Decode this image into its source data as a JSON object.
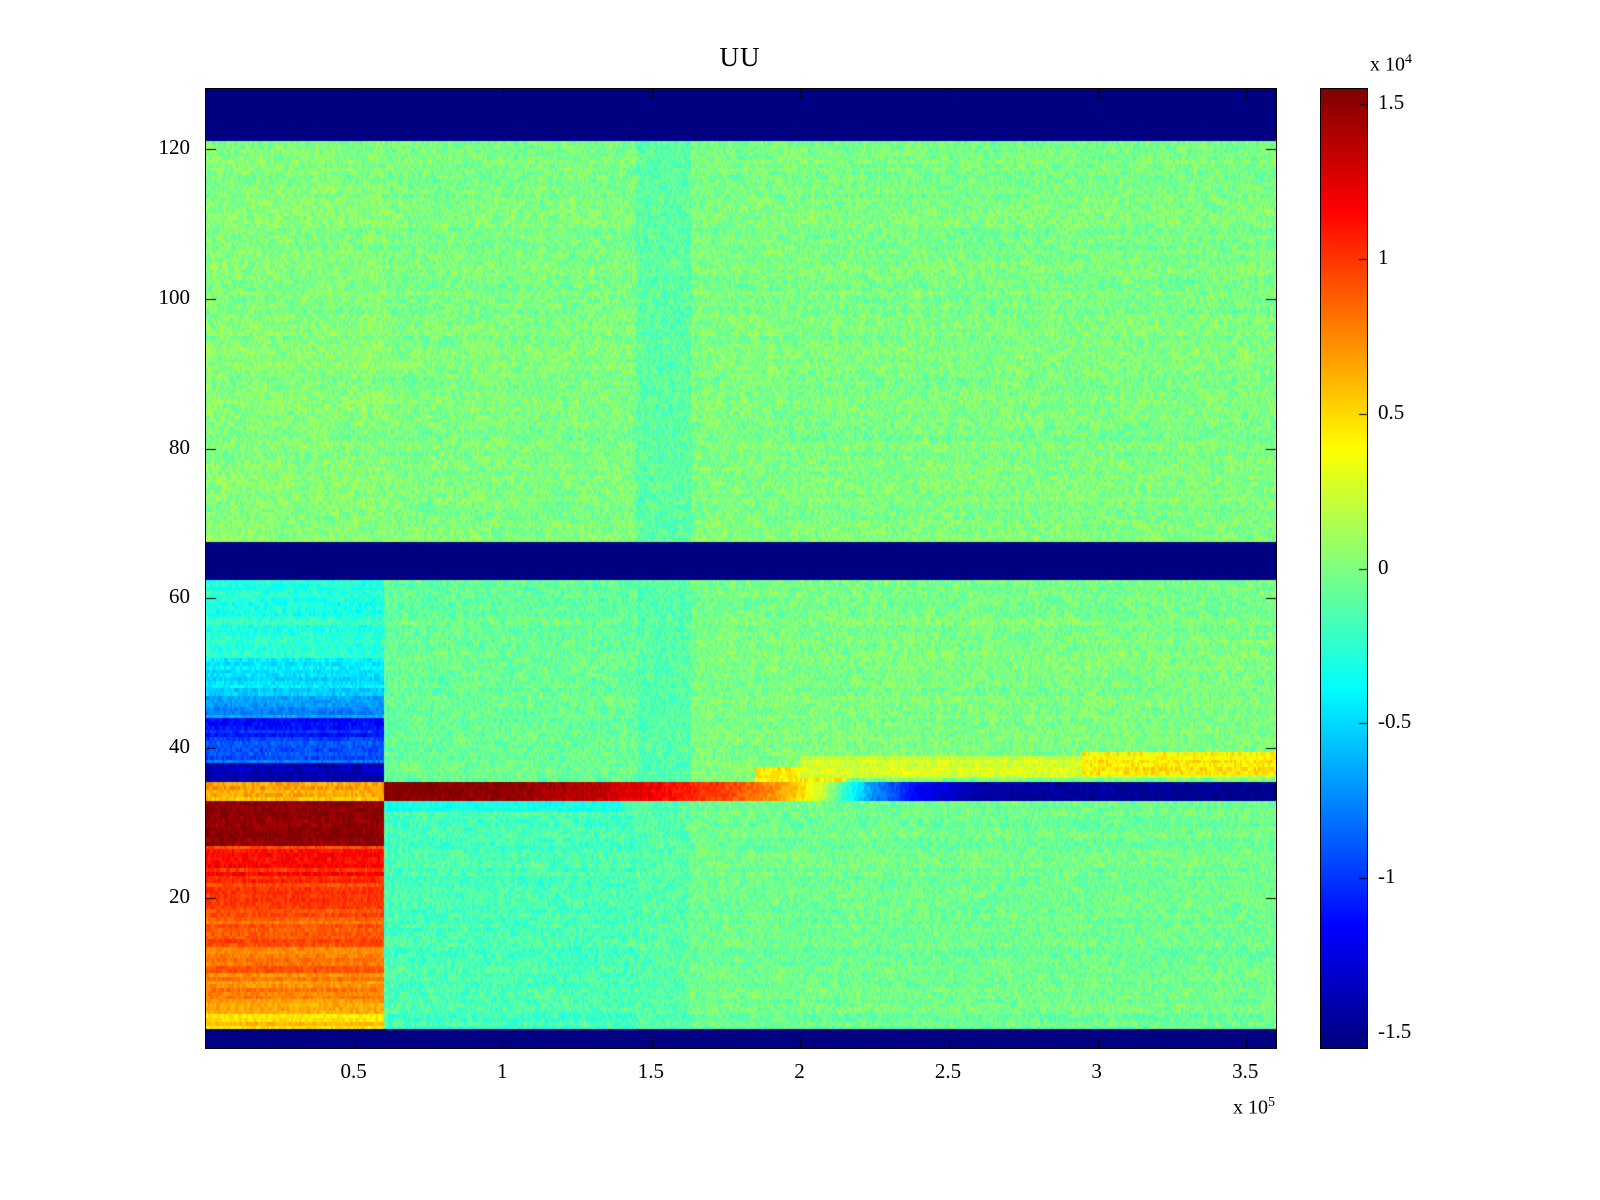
{
  "chart_data": {
    "type": "heatmap",
    "title": "UU",
    "colormap": "jet",
    "x_range": [
      0,
      360000
    ],
    "y_range": [
      0,
      128
    ],
    "x_ticks": {
      "values": [
        50000,
        100000,
        150000,
        200000,
        250000,
        300000,
        350000
      ],
      "labels": [
        "0.5",
        "1",
        "1.5",
        "2",
        "2.5",
        "3",
        "3.5"
      ],
      "multiplier": "x 10",
      "exponent": "5"
    },
    "y_ticks": {
      "values": [
        20,
        40,
        60,
        80,
        100,
        120
      ],
      "labels": [
        "20",
        "40",
        "60",
        "80",
        "100",
        "120"
      ]
    },
    "colorbar": {
      "clim": [
        -15500,
        15500
      ],
      "tick_values": [
        15000,
        10000,
        5000,
        0,
        -5000,
        -10000,
        -15000
      ],
      "tick_labels": [
        "1.5",
        "1",
        "0.5",
        "0",
        "-0.5",
        "-1",
        "-1.5"
      ],
      "multiplier": "x 10",
      "exponent": "4"
    },
    "noise_seed": 7,
    "regions_comment": "painter-order rectangles: [x0,x1,y0,y1,value,cellNoise,rowNoise]",
    "regions": [
      [
        0,
        360000,
        0,
        128,
        -15500,
        150,
        0
      ],
      [
        0,
        360000,
        2.5,
        62.5,
        -100,
        1400,
        300
      ],
      [
        0,
        360000,
        67.5,
        121,
        -100,
        1400,
        300
      ],
      [
        0,
        62000,
        67.5,
        121,
        150,
        1400,
        300
      ],
      [
        145000,
        163000,
        67.5,
        121,
        -1100,
        1300,
        0
      ],
      [
        145000,
        163000,
        2.5,
        62.5,
        -1300,
        1300,
        0
      ],
      [
        60000,
        145000,
        2.5,
        35,
        -1700,
        1400,
        400
      ],
      [
        60000,
        145000,
        35.5,
        62.5,
        -700,
        1400,
        300
      ],
      [
        163000,
        360000,
        2.5,
        33,
        -500,
        1300,
        350
      ],
      [
        0,
        60000,
        2.5,
        6,
        5500,
        900,
        1100
      ],
      [
        0,
        60000,
        6,
        10,
        7200,
        900,
        1100
      ],
      [
        0,
        60000,
        10,
        14,
        8200,
        900,
        1100
      ],
      [
        0,
        60000,
        14,
        18,
        8800,
        900,
        1100
      ],
      [
        0,
        60000,
        18,
        22,
        9600,
        900,
        1200
      ],
      [
        0,
        60000,
        22,
        27,
        10600,
        1000,
        1200
      ],
      [
        0,
        60000,
        27,
        33,
        15200,
        1200,
        400
      ],
      [
        0,
        60000,
        33,
        35.5,
        6200,
        1200,
        900
      ],
      [
        0,
        60000,
        35.5,
        38,
        -14200,
        1300,
        500
      ],
      [
        0,
        60000,
        38,
        41,
        -9000,
        1100,
        1400
      ],
      [
        0,
        60000,
        41,
        44,
        -11000,
        1100,
        1400
      ],
      [
        0,
        60000,
        44,
        47,
        -7500,
        1000,
        1200
      ],
      [
        0,
        60000,
        47,
        52,
        -4800,
        1000,
        1000
      ],
      [
        0,
        60000,
        52,
        62.5,
        -2600,
        1200,
        600
      ],
      [
        60000,
        140000,
        31.5,
        33,
        -3200,
        1000,
        0
      ],
      [
        185000,
        215000,
        35.5,
        37.5,
        4500,
        1200,
        0
      ],
      [
        200000,
        360000,
        36,
        39,
        2300,
        1200,
        700
      ],
      [
        295000,
        360000,
        36.5,
        39.5,
        4200,
        1200,
        700
      ]
    ],
    "stripe": {
      "y0": 33,
      "y1": 35.5,
      "noise": 900,
      "row_noise": 300,
      "points": [
        [
          60000,
          15500
        ],
        [
          100000,
          15000
        ],
        [
          130000,
          13500
        ],
        [
          155000,
          11500
        ],
        [
          175000,
          9500
        ],
        [
          190000,
          7500
        ],
        [
          200000,
          5000
        ],
        [
          208000,
          2000
        ],
        [
          215000,
          -2500
        ],
        [
          225000,
          -7500
        ],
        [
          240000,
          -12000
        ],
        [
          260000,
          -14500
        ],
        [
          360000,
          -15200
        ]
      ]
    }
  }
}
